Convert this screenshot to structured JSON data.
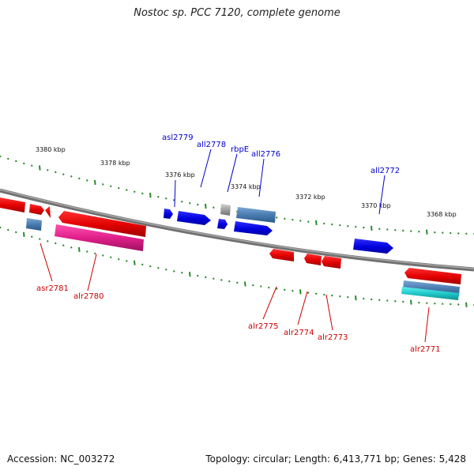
{
  "title": "Nostoc sp. PCC 7120, complete genome",
  "footer": {
    "accession": "Accession: NC_003272",
    "topology": "Topology: circular; Length: 6,413,771 bp; Genes: 5,428"
  },
  "ruler_ticks": [
    "3380 kbp",
    "3378 kbp",
    "3376 kbp",
    "3374 kbp",
    "3372 kbp",
    "3370 kbp",
    "3368 kbp"
  ],
  "genes_top": [
    "asl2779",
    "all2778",
    "rbpE",
    "all2776",
    "all2772"
  ],
  "genes_bottom": [
    "asr2781",
    "alr2780",
    "alr2775",
    "alr2774",
    "alr2773",
    "alr2771"
  ],
  "colors": {
    "reverse_strand": "#0000dd",
    "forward_strand": "#dd0000",
    "pseudo": "#5a8cc0",
    "rna": "#e0208a",
    "teal": "#20c8c8",
    "unknown": "#a0a0a0",
    "backbone": "#808080",
    "tick": "#2a8a2a"
  }
}
